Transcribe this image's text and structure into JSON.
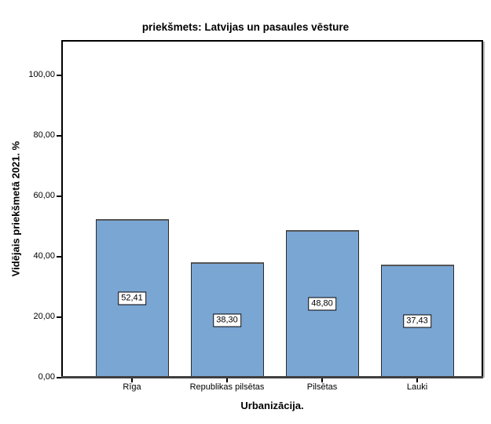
{
  "chart_data": {
    "type": "bar",
    "title": "priekšmets: Latvijas un pasaules vēsture",
    "xlabel": "Urbanizācija.",
    "ylabel": "Vidējais priekšmetā 2021. %",
    "categories": [
      "Rīga",
      "Republikas pilsētas",
      "Pilsētas",
      "Lauki"
    ],
    "values": [
      52.41,
      38.3,
      48.8,
      37.43
    ],
    "value_labels": [
      "52,41",
      "38,30",
      "48,80",
      "37,43"
    ],
    "y_tick_values": [
      0,
      20,
      40,
      60,
      80,
      100
    ],
    "y_tick_labels": [
      "0,00",
      "20,00",
      "40,00",
      "60,00",
      "80,00",
      "100,00"
    ],
    "ylim": [
      0,
      111.7
    ],
    "grid": false,
    "legend": false,
    "bar_fill_color": "#7AA6D4",
    "bar_border_color": "#2b2b2b",
    "axis_line_color": "#3f3f3f",
    "frame_color": "#000000",
    "background_color": "#ffffff"
  }
}
